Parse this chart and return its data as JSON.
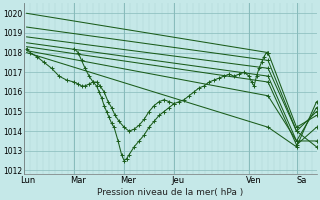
{
  "xlabel": "Pression niveau de la mer( hPa )",
  "bg_color": "#c5e8e8",
  "grid_major_color": "#88bbbb",
  "grid_minor_color": "#aad4d4",
  "line_color": "#1a5c1a",
  "ylim": [
    1011.8,
    1020.5
  ],
  "xlim": [
    0.0,
    5.85
  ],
  "yticks": [
    1012,
    1013,
    1014,
    1015,
    1016,
    1017,
    1018,
    1019,
    1020
  ],
  "xtick_labels": [
    "Lun",
    "Mar",
    "Mer",
    "Jeu",
    "Ven",
    "Sa"
  ],
  "xtick_pos": [
    0.08,
    1.08,
    2.08,
    3.08,
    4.6,
    5.55
  ],
  "day_vlines": [
    0.0,
    1.0,
    2.0,
    3.0,
    4.5,
    5.45
  ],
  "straight_lines": [
    {
      "x": [
        0.05,
        4.88
      ],
      "y": [
        1020.0,
        1018.0
      ]
    },
    {
      "x": [
        0.05,
        4.88
      ],
      "y": [
        1019.3,
        1017.6
      ]
    },
    {
      "x": [
        0.05,
        4.88
      ],
      "y": [
        1018.8,
        1017.2
      ]
    },
    {
      "x": [
        0.05,
        4.88
      ],
      "y": [
        1018.5,
        1016.8
      ]
    },
    {
      "x": [
        0.05,
        4.88
      ],
      "y": [
        1018.3,
        1016.5
      ]
    },
    {
      "x": [
        0.05,
        4.88
      ],
      "y": [
        1018.1,
        1015.8
      ]
    },
    {
      "x": [
        0.05,
        4.88
      ],
      "y": [
        1018.0,
        1014.2
      ]
    }
  ],
  "zigzag_line": {
    "x": [
      0.05,
      0.12,
      0.25,
      0.4,
      0.55,
      0.7,
      0.85,
      1.0,
      1.08,
      1.15,
      1.22,
      1.3,
      1.38,
      1.45,
      1.52,
      1.6,
      1.68,
      1.75,
      1.82,
      1.9,
      2.0,
      2.1,
      2.2,
      2.3,
      2.4,
      2.5,
      2.6,
      2.7,
      2.8,
      2.9,
      3.0,
      3.1,
      3.2,
      3.3,
      3.4,
      3.5,
      3.6,
      3.7,
      3.8,
      3.9,
      4.0,
      4.1,
      4.2,
      4.3,
      4.4,
      4.5,
      4.55,
      4.6,
      4.65,
      4.7,
      4.75,
      4.8,
      4.85,
      4.88
    ],
    "y": [
      1018.2,
      1018.0,
      1017.8,
      1017.5,
      1017.2,
      1016.8,
      1016.6,
      1016.5,
      1016.4,
      1016.3,
      1016.3,
      1016.4,
      1016.5,
      1016.5,
      1016.3,
      1016.0,
      1015.5,
      1015.2,
      1014.8,
      1014.5,
      1014.2,
      1014.0,
      1014.1,
      1014.3,
      1014.6,
      1015.0,
      1015.3,
      1015.5,
      1015.6,
      1015.5,
      1015.4,
      1015.5,
      1015.6,
      1015.8,
      1016.0,
      1016.2,
      1016.3,
      1016.5,
      1016.6,
      1016.7,
      1016.8,
      1016.9,
      1016.8,
      1016.9,
      1017.0,
      1016.8,
      1016.5,
      1016.3,
      1016.8,
      1017.2,
      1017.5,
      1017.8,
      1018.0,
      1018.0
    ]
  },
  "end_lines": [
    {
      "x": [
        4.88,
        5.45,
        5.85
      ],
      "y": [
        1018.0,
        1014.2,
        1014.8
      ]
    },
    {
      "x": [
        4.88,
        5.45,
        5.85
      ],
      "y": [
        1017.6,
        1014.0,
        1013.2
      ]
    },
    {
      "x": [
        4.88,
        5.45,
        5.85
      ],
      "y": [
        1017.2,
        1014.0,
        1015.0
      ]
    },
    {
      "x": [
        4.88,
        5.45,
        5.85
      ],
      "y": [
        1016.8,
        1013.5,
        1013.5
      ]
    },
    {
      "x": [
        4.88,
        5.45,
        5.85
      ],
      "y": [
        1016.5,
        1013.3,
        1014.2
      ]
    },
    {
      "x": [
        4.88,
        5.45,
        5.85
      ],
      "y": [
        1015.8,
        1013.5,
        1015.2
      ]
    },
    {
      "x": [
        4.88,
        5.45,
        5.85
      ],
      "y": [
        1014.2,
        1013.2,
        1015.5
      ]
    }
  ],
  "detail_segment": {
    "x": [
      1.0,
      1.08,
      1.15,
      1.22,
      1.3,
      1.38,
      1.45,
      1.5,
      1.55,
      1.6,
      1.65,
      1.7,
      1.75,
      1.8,
      1.88,
      1.95,
      2.0,
      2.05,
      2.1,
      2.2,
      2.3,
      2.4,
      2.5,
      2.6,
      2.7,
      2.8,
      2.9,
      3.0
    ],
    "y": [
      1018.2,
      1018.0,
      1017.6,
      1017.2,
      1016.8,
      1016.5,
      1016.3,
      1016.0,
      1015.7,
      1015.3,
      1015.0,
      1014.7,
      1014.4,
      1014.2,
      1013.5,
      1012.8,
      1012.5,
      1012.6,
      1012.8,
      1013.2,
      1013.5,
      1013.8,
      1014.2,
      1014.5,
      1014.8,
      1015.0,
      1015.2,
      1015.4
    ]
  }
}
